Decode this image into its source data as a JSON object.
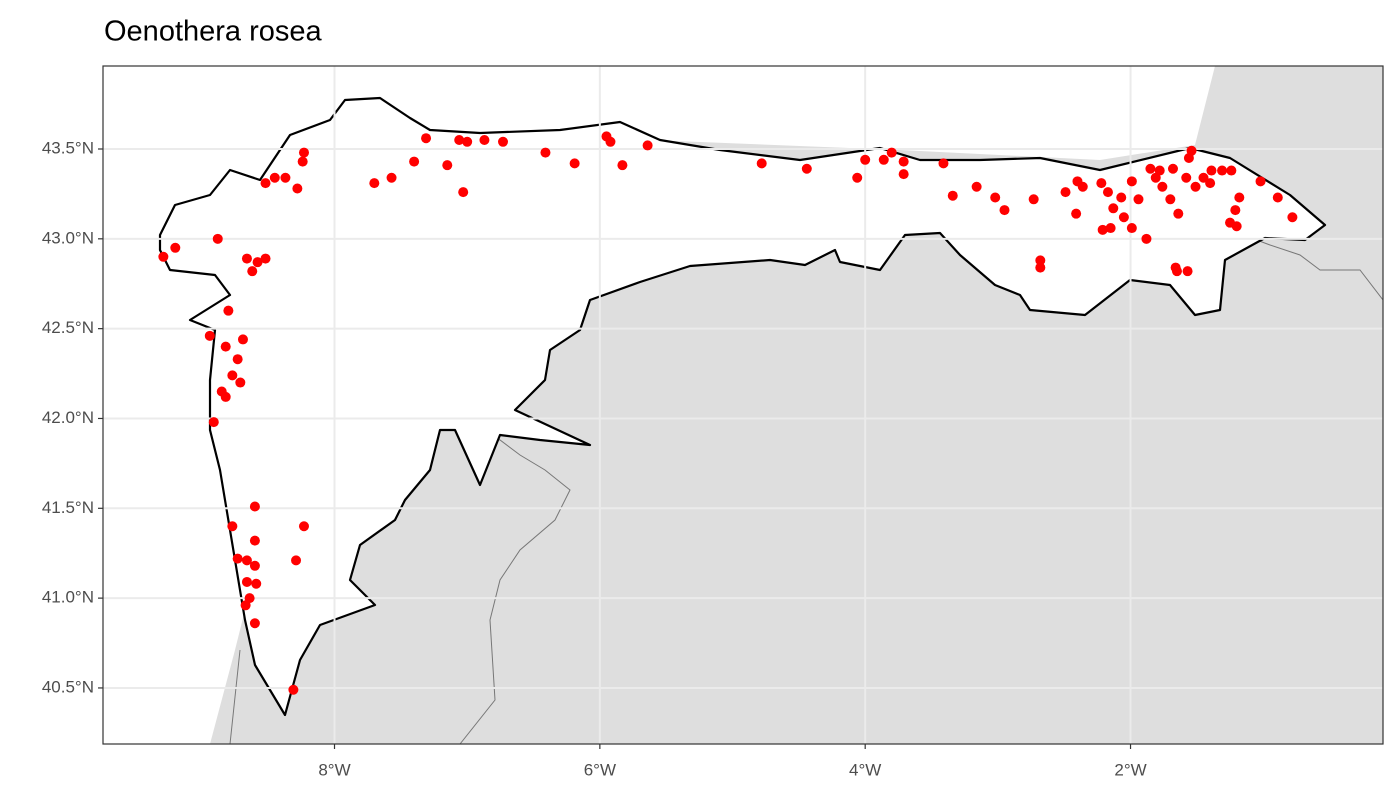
{
  "chart_data": {
    "type": "scatter",
    "title": "Oenothera rosea",
    "color": "#ff0000",
    "grid": true,
    "xlim": [
      -9.745,
      -0.097
    ],
    "ylim": [
      40.188,
      43.962
    ],
    "xticks": [
      {
        "value": -8,
        "label": "8°W"
      },
      {
        "value": -6,
        "label": "6°W"
      },
      {
        "value": -4,
        "label": "4°W"
      },
      {
        "value": -2,
        "label": "2°W"
      }
    ],
    "yticks": [
      {
        "value": 40.5,
        "label": "40.5°N"
      },
      {
        "value": 41.0,
        "label": "41.0°N"
      },
      {
        "value": 41.5,
        "label": "41.5°N"
      },
      {
        "value": 42.0,
        "label": "42.0°N"
      },
      {
        "value": 42.5,
        "label": "42.5°N"
      },
      {
        "value": 43.0,
        "label": "43.0°N"
      },
      {
        "value": 43.5,
        "label": "43.5°N"
      }
    ],
    "x": [
      -9.29,
      -9.2,
      -8.88,
      -8.52,
      -8.45,
      -8.37,
      -8.28,
      -8.24,
      -8.23,
      -8.66,
      -8.58,
      -8.52,
      -8.62,
      -8.8,
      -8.94,
      -8.82,
      -8.69,
      -8.73,
      -8.77,
      -8.71,
      -8.85,
      -8.82,
      -8.91,
      -8.6,
      -8.77,
      -8.23,
      -8.6,
      -8.73,
      -8.66,
      -8.29,
      -8.6,
      -8.66,
      -8.59,
      -8.64,
      -8.67,
      -8.6,
      -8.31,
      -7.7,
      -7.57,
      -7.4,
      -7.31,
      -7.15,
      -7.06,
      -7.03,
      -7.0,
      -6.87,
      -6.73,
      -6.41,
      -6.19,
      -5.95,
      -5.92,
      -5.83,
      -5.64,
      -4.78,
      -4.44,
      -4.06,
      -4.0,
      -3.86,
      -3.8,
      -3.71,
      -3.71,
      -3.41,
      -3.34,
      -3.16,
      -3.02,
      -2.95,
      -2.73,
      -2.68,
      -2.68,
      -2.49,
      -2.4,
      -2.41,
      -2.36,
      -2.22,
      -2.17,
      -2.21,
      -2.15,
      -2.13,
      -2.07,
      -2.05,
      -1.99,
      -1.99,
      -1.94,
      -1.88,
      -1.81,
      -1.76,
      -1.7,
      -1.68,
      -1.64,
      -1.66,
      -1.65,
      -1.57,
      -1.58,
      -1.56,
      -1.54,
      -1.51,
      -1.45,
      -1.39,
      -1.31,
      -1.24,
      -1.25,
      -1.21,
      -1.18,
      -1.2,
      -1.02,
      -0.89,
      -0.78,
      -1.4,
      -1.85,
      -1.78
    ],
    "y": [
      42.9,
      42.95,
      43.0,
      43.31,
      43.34,
      43.34,
      43.28,
      43.43,
      43.48,
      42.89,
      42.87,
      42.89,
      42.82,
      42.6,
      42.46,
      42.4,
      42.44,
      42.33,
      42.24,
      42.2,
      42.15,
      42.12,
      41.98,
      41.51,
      41.4,
      41.4,
      41.32,
      41.22,
      41.21,
      41.21,
      41.18,
      41.09,
      41.08,
      41.0,
      40.96,
      40.86,
      40.49,
      43.31,
      43.34,
      43.43,
      43.56,
      43.41,
      43.55,
      43.26,
      43.54,
      43.55,
      43.54,
      43.48,
      43.42,
      43.57,
      43.54,
      43.41,
      43.52,
      43.42,
      43.39,
      43.34,
      43.44,
      43.44,
      43.48,
      43.43,
      43.36,
      43.42,
      43.24,
      43.29,
      43.23,
      43.16,
      43.22,
      42.88,
      42.84,
      43.26,
      43.32,
      43.14,
      43.29,
      43.31,
      43.26,
      43.05,
      43.06,
      43.17,
      43.23,
      43.12,
      43.32,
      43.06,
      43.22,
      43.0,
      43.34,
      43.29,
      43.22,
      43.39,
      43.14,
      42.84,
      42.82,
      42.82,
      43.34,
      43.45,
      43.49,
      43.29,
      43.34,
      43.38,
      43.38,
      43.38,
      43.09,
      43.16,
      43.23,
      43.07,
      43.32,
      43.23,
      43.12,
      43.31,
      43.39,
      43.38
    ]
  }
}
